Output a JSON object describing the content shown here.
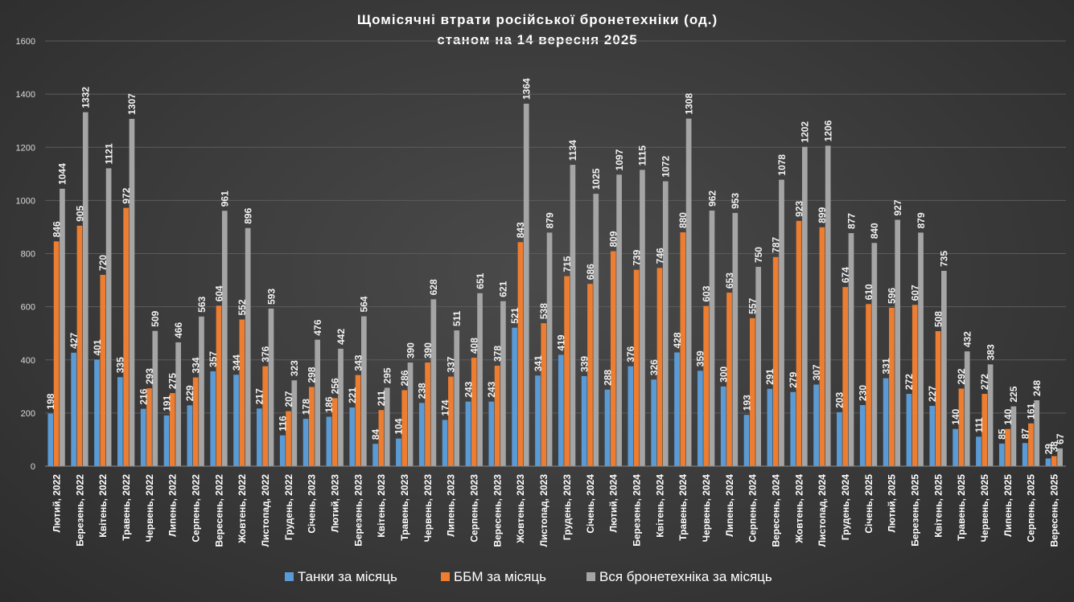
{
  "chart_data": {
    "type": "bar",
    "title": "Щомісячні втрати російської бронетехніки (од.)",
    "subtitle": "станом на 14 вересня 2025",
    "xlabel": "",
    "ylabel": "",
    "ylim": [
      0,
      1600
    ],
    "yticks": [
      0,
      200,
      400,
      600,
      800,
      1000,
      1200,
      1400,
      1600
    ],
    "grid": true,
    "legend_position": "bottom",
    "categories": [
      "Лютий, 2022",
      "Березень, 2022",
      "Квітень, 2022",
      "Травень, 2022",
      "Червень, 2022",
      "Липень, 2022",
      "Серпень, 2022",
      "Вересень, 2022",
      "Жовтень, 2022",
      "Листопад, 2022",
      "Грудень, 2022",
      "Січень, 2023",
      "Лютий, 2023",
      "Березень, 2023",
      "Квітень, 2023",
      "Травень, 2023",
      "Червень, 2023",
      "Липень, 2023",
      "Серпень, 2023",
      "Вересень, 2023",
      "Жовтень, 2023",
      "Листопад, 2023",
      "Грудень, 2023",
      "Січень, 2024",
      "Лютий, 2024",
      "Березень, 2024",
      "Квітень, 2024",
      "Травень, 2024",
      "Червень, 2024",
      "Липень, 2024",
      "Серпень, 2024",
      "Вересень, 2024",
      "Жовтень, 2024",
      "Листопад, 2024",
      "Грудень, 2024",
      "Січень, 2025",
      "Лютий, 2025",
      "Березень, 2025",
      "Квітень, 2025",
      "Травень, 2025",
      "Червень, 2025",
      "Липень, 2025",
      "Серпень, 2025",
      "Вересень, 2025"
    ],
    "series": [
      {
        "name": "Танки за місяць",
        "color": "#5b9bd5",
        "values": [
          198,
          427,
          401,
          335,
          216,
          191,
          229,
          357,
          344,
          217,
          116,
          178,
          186,
          221,
          84,
          104,
          238,
          174,
          243,
          243,
          521,
          341,
          419,
          339,
          288,
          376,
          326,
          428,
          359,
          300,
          193,
          291,
          279,
          307,
          203,
          230,
          331,
          272,
          227,
          140,
          111,
          85,
          87,
          29
        ]
      },
      {
        "name": "ББМ за місяць",
        "color": "#ed7d31",
        "values": [
          846,
          905,
          720,
          972,
          293,
          275,
          334,
          604,
          552,
          376,
          207,
          298,
          256,
          343,
          211,
          286,
          390,
          337,
          408,
          378,
          843,
          538,
          715,
          686,
          809,
          739,
          746,
          880,
          603,
          653,
          557,
          787,
          923,
          899,
          674,
          610,
          596,
          607,
          508,
          292,
          272,
          140,
          161,
          38
        ]
      },
      {
        "name": "Вся бронетехніка за місяць",
        "color": "#a5a5a5",
        "values": [
          1044,
          1332,
          1121,
          1307,
          509,
          466,
          563,
          961,
          896,
          593,
          323,
          476,
          442,
          564,
          295,
          390,
          628,
          511,
          651,
          621,
          1364,
          879,
          1134,
          1025,
          1097,
          1115,
          1072,
          1308,
          962,
          953,
          750,
          1078,
          1202,
          1206,
          877,
          840,
          927,
          879,
          735,
          432,
          383,
          225,
          248,
          67
        ]
      }
    ]
  }
}
